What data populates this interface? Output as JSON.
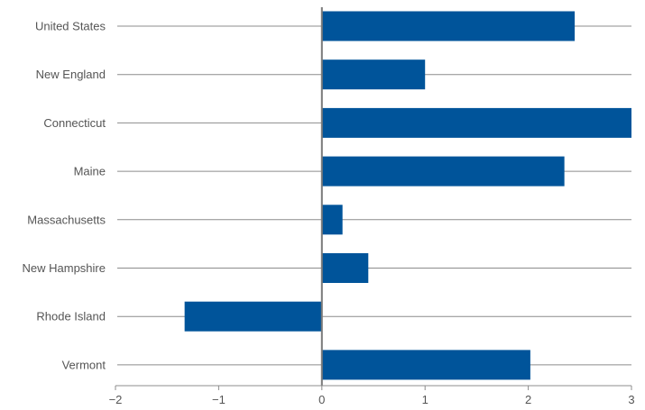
{
  "chart_data": {
    "type": "bar",
    "orientation": "horizontal",
    "categories": [
      "United States",
      "New England",
      "Connecticut",
      "Maine",
      "Massachusetts",
      "New Hampshire",
      "Rhode Island",
      "Vermont"
    ],
    "values": [
      2.45,
      1.0,
      3.0,
      2.35,
      0.2,
      0.45,
      -1.33,
      2.02
    ],
    "x_ticks": [
      "−2",
      "−1",
      "0",
      "1",
      "2",
      "3"
    ],
    "xlim": [
      -2,
      3
    ],
    "grid": true,
    "colors": {
      "bar": "#00549a"
    }
  }
}
